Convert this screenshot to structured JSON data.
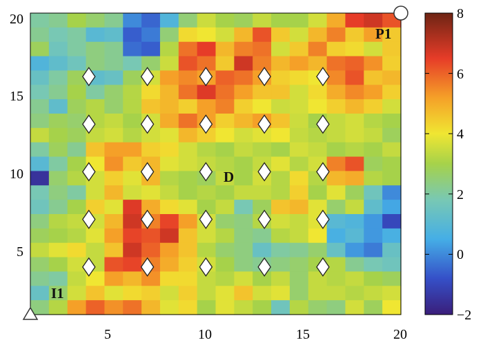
{
  "chart_data": {
    "type": "heatmap",
    "x_ticks": [
      "5",
      "10",
      "15",
      "20"
    ],
    "y_ticks": [
      "5",
      "10",
      "15",
      "20"
    ],
    "colorbar_ticks": [
      "8",
      "6",
      "4",
      "2",
      "0",
      "−2"
    ],
    "xlim": [
      1,
      20
    ],
    "ylim": [
      1,
      20
    ],
    "clim": [
      -2,
      8
    ],
    "colormap": "jet",
    "grid": false,
    "annotations": [
      {
        "text": "P1",
        "x": 18.5,
        "y": 18.5
      },
      {
        "text": "D",
        "x": 11.5,
        "y": 10
      },
      {
        "text": "I1",
        "x": 1.6,
        "y": 2
      }
    ],
    "markers": {
      "diamonds": {
        "xs": [
          4,
          7,
          10,
          13,
          16
        ],
        "ys": [
          4,
          7,
          10,
          13,
          16
        ]
      },
      "circle": {
        "x": 20,
        "y": 20
      },
      "triangle": {
        "x": 1,
        "y": 1
      }
    },
    "grid_values": [
      [
        2.0,
        2.2,
        3.0,
        2.6,
        2.2,
        0.0,
        -0.5,
        0.8,
        2.5,
        3.5,
        3.0,
        2.8,
        3.4,
        3.0,
        3.0,
        3.6,
        5.0,
        6.5,
        6.8,
        6.2
      ],
      [
        2.2,
        1.8,
        2.0,
        1.0,
        1.2,
        -0.6,
        -0.2,
        2.5,
        4.2,
        4.0,
        3.6,
        4.8,
        6.2,
        4.5,
        3.6,
        4.8,
        5.6,
        4.5,
        5.2,
        4.5
      ],
      [
        2.8,
        1.6,
        2.0,
        2.4,
        2.2,
        -0.4,
        -0.6,
        3.2,
        5.8,
        6.5,
        4.8,
        5.6,
        5.8,
        3.6,
        4.5,
        5.6,
        4.4,
        4.2,
        3.6,
        4.5
      ],
      [
        0.8,
        1.2,
        1.6,
        2.4,
        2.2,
        1.8,
        2.6,
        3.5,
        6.2,
        5.8,
        4.5,
        6.8,
        5.6,
        4.8,
        5.2,
        4.8,
        5.8,
        6.0,
        5.4,
        4.4
      ],
      [
        1.4,
        2.0,
        2.8,
        1.2,
        1.4,
        2.8,
        3.6,
        5.2,
        5.5,
        5.2,
        6.0,
        5.8,
        5.2,
        4.4,
        4.2,
        4.0,
        5.5,
        6.2,
        4.6,
        4.8
      ],
      [
        1.8,
        2.2,
        3.0,
        2.0,
        2.6,
        3.2,
        4.2,
        4.8,
        5.8,
        6.6,
        5.8,
        5.2,
        4.6,
        4.6,
        3.6,
        4.2,
        5.0,
        5.5,
        5.2,
        4.4
      ],
      [
        2.2,
        1.2,
        2.8,
        3.2,
        2.6,
        3.2,
        4.6,
        4.8,
        4.4,
        5.2,
        5.6,
        4.4,
        4.0,
        3.5,
        3.6,
        4.0,
        4.4,
        4.8,
        4.4,
        3.6
      ],
      [
        2.4,
        2.8,
        2.6,
        3.2,
        3.4,
        3.0,
        3.6,
        5.0,
        5.8,
        5.2,
        4.4,
        4.8,
        5.2,
        4.6,
        3.5,
        3.0,
        3.4,
        3.6,
        3.2,
        3.0
      ],
      [
        3.4,
        3.0,
        2.8,
        3.4,
        3.6,
        3.2,
        3.6,
        3.8,
        4.8,
        4.4,
        4.0,
        3.6,
        3.8,
        4.0,
        3.4,
        3.2,
        3.4,
        3.6,
        3.4,
        2.8
      ],
      [
        2.0,
        2.8,
        2.2,
        4.6,
        5.2,
        5.2,
        4.4,
        4.2,
        3.6,
        3.2,
        3.0,
        3.4,
        3.2,
        3.0,
        3.6,
        3.4,
        3.0,
        3.2,
        3.0,
        3.4
      ],
      [
        1.0,
        2.0,
        3.0,
        4.0,
        5.4,
        4.5,
        4.8,
        3.8,
        3.6,
        3.4,
        3.2,
        3.0,
        3.4,
        3.8,
        3.2,
        3.6,
        5.6,
        6.2,
        2.8,
        3.0
      ],
      [
        -1.5,
        2.6,
        3.2,
        3.6,
        4.4,
        3.8,
        4.8,
        3.2,
        3.0,
        2.8,
        3.4,
        3.0,
        3.6,
        3.2,
        4.2,
        3.2,
        4.8,
        5.0,
        3.2,
        3.0
      ],
      [
        1.8,
        2.4,
        2.0,
        3.6,
        4.8,
        3.6,
        3.8,
        3.4,
        3.0,
        3.2,
        3.0,
        3.4,
        3.4,
        3.2,
        4.4,
        3.0,
        3.8,
        2.8,
        1.6,
        0.0
      ],
      [
        1.6,
        2.2,
        3.0,
        4.4,
        3.8,
        6.6,
        5.0,
        4.2,
        3.8,
        3.0,
        3.4,
        1.8,
        2.8,
        4.6,
        4.8,
        3.8,
        2.6,
        3.4,
        1.2,
        0.4
      ],
      [
        2.4,
        3.2,
        3.4,
        3.6,
        4.8,
        6.8,
        5.6,
        6.4,
        5.2,
        3.6,
        2.6,
        2.4,
        3.2,
        3.6,
        3.4,
        3.8,
        1.0,
        0.8,
        0.2,
        -1.0
      ],
      [
        2.8,
        3.0,
        3.2,
        3.8,
        5.2,
        6.4,
        6.2,
        6.8,
        4.6,
        3.6,
        3.2,
        2.4,
        2.2,
        3.2,
        3.4,
        4.0,
        0.6,
        1.0,
        0.2,
        0.6
      ],
      [
        3.4,
        3.8,
        4.2,
        3.4,
        4.6,
        6.8,
        6.0,
        5.2,
        4.6,
        3.2,
        2.6,
        2.4,
        1.4,
        2.0,
        2.2,
        2.6,
        1.4,
        0.2,
        -0.2,
        1.4
      ],
      [
        2.6,
        3.0,
        3.6,
        3.4,
        6.2,
        6.4,
        5.6,
        5.0,
        4.4,
        3.6,
        3.0,
        2.4,
        2.2,
        2.4,
        2.6,
        3.0,
        3.2,
        2.2,
        1.8,
        1.6
      ],
      [
        2.2,
        2.0,
        3.4,
        4.0,
        5.2,
        4.8,
        5.4,
        4.2,
        4.2,
        3.4,
        3.2,
        3.6,
        3.0,
        3.4,
        2.6,
        3.4,
        3.2,
        3.4,
        3.0,
        2.8
      ],
      [
        1.4,
        2.6,
        3.6,
        4.6,
        3.8,
        4.2,
        4.4,
        3.6,
        4.4,
        3.4,
        3.8,
        4.6,
        3.6,
        3.8,
        2.6,
        3.4,
        3.4,
        3.2,
        3.4,
        3.6
      ],
      [
        2.4,
        3.2,
        5.2,
        6.0,
        5.4,
        5.8,
        4.8,
        3.8,
        4.2,
        3.0,
        3.8,
        3.4,
        3.0,
        1.6,
        3.2,
        2.6,
        2.4,
        3.6,
        2.8,
        4.0
      ]
    ]
  }
}
